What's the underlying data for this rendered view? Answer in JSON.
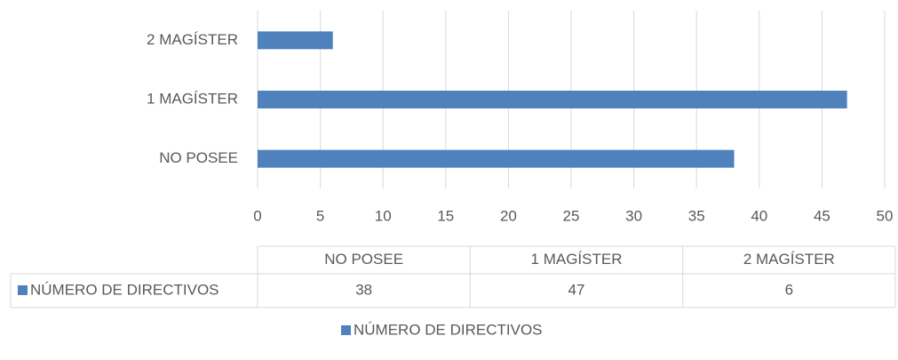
{
  "chart_data": {
    "type": "bar",
    "orientation": "horizontal",
    "categories": [
      "NO POSEE",
      "1 MAGÍSTER",
      "2 MAGÍSTER"
    ],
    "series": [
      {
        "name": "NÚMERO DE DIRECTIVOS",
        "color": "#4f81bd",
        "values": [
          38,
          47,
          6
        ]
      }
    ],
    "xlim": [
      0,
      50
    ],
    "xticks": [
      0,
      5,
      10,
      15,
      20,
      25,
      30,
      35,
      40,
      45,
      50
    ],
    "grid": true,
    "data_table": true,
    "legend": "bottom"
  }
}
